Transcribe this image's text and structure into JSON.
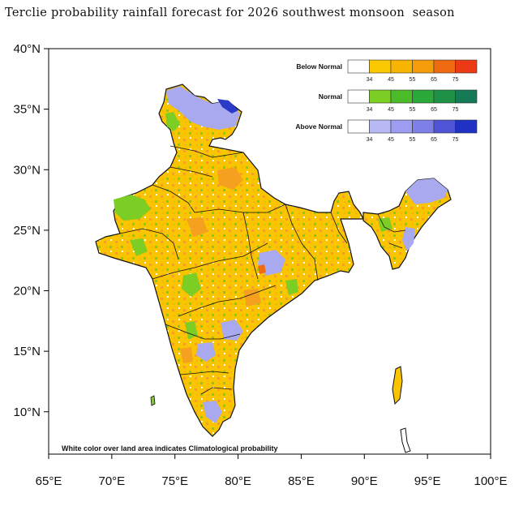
{
  "title": "Terclie probability rainfall forecast for 2026 southwest monsoon  season",
  "map": {
    "lat_labels": [
      "40°N",
      "35°N",
      "30°N",
      "25°N",
      "20°N",
      "15°N",
      "10°N"
    ],
    "lon_labels": [
      "65°E",
      "70°E",
      "75°E",
      "80°E",
      "85°E",
      "90°E",
      "95°E",
      "100°E"
    ],
    "lat_range": [
      6.5,
      40
    ],
    "lon_range": [
      65,
      100
    ],
    "footnote": "White color over land area indicates Climatological probability"
  },
  "legend": {
    "tick_labels": [
      "34",
      "45",
      "55",
      "65",
      "75"
    ],
    "categories": [
      {
        "label": "Below Normal",
        "colors": [
          "#ffffff",
          "#f9c800",
          "#f7b400",
          "#f49c0a",
          "#f06a12",
          "#ec3b14"
        ]
      },
      {
        "label": "Normal",
        "colors": [
          "#ffffff",
          "#7ccd24",
          "#4cbb2a",
          "#2aa839",
          "#1f9147",
          "#167a57"
        ]
      },
      {
        "label": "Above Normal",
        "colors": [
          "#ffffff",
          "#b8b8f4",
          "#9c9cf0",
          "#7f7fe8",
          "#4f55d6",
          "#1f32c4"
        ]
      }
    ]
  },
  "colors": {
    "below_normal_main": "#f9c400",
    "below_normal_high": "#f5a01e",
    "normal_main": "#7ccd24",
    "above_normal_main": "#a9a9f0",
    "above_normal_high": "#2b3bc8",
    "boundary": "#111111"
  }
}
